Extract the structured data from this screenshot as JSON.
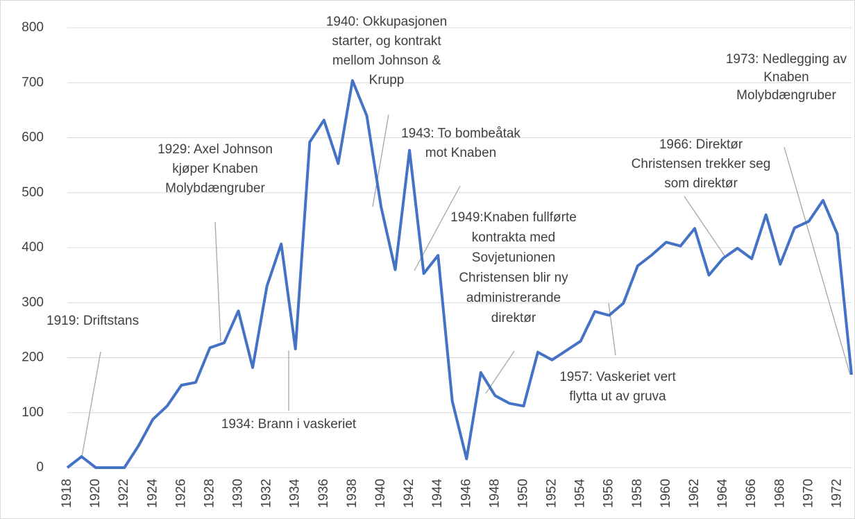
{
  "chart_data": {
    "type": "line",
    "categories": [
      "1918",
      null,
      "1920",
      null,
      "1922",
      null,
      "1924",
      null,
      "1926",
      null,
      "1928",
      null,
      "1930",
      null,
      "1932",
      null,
      "1934",
      null,
      "1936",
      null,
      "1938",
      null,
      "1940",
      null,
      "1942",
      null,
      "1944",
      null,
      "1946",
      null,
      "1948",
      null,
      "1950",
      null,
      "1952",
      null,
      "1954",
      null,
      "1956",
      null,
      "1958",
      null,
      "1960",
      null,
      "1962",
      null,
      "1964",
      null,
      "1966",
      null,
      "1968",
      null,
      "1970",
      null,
      "1972",
      null
    ],
    "series": [
      {
        "color": "#4472c4",
        "values": [
          0,
          20,
          0,
          0,
          0,
          40,
          88,
          112,
          150,
          155,
          218,
          227,
          285,
          182,
          330,
          407,
          216,
          592,
          632,
          553,
          704,
          640,
          475,
          360,
          577,
          353,
          386,
          121,
          16,
          173,
          131,
          117,
          112,
          210,
          196,
          213,
          230,
          284,
          277,
          299,
          367,
          387,
          410,
          403,
          435,
          350,
          381,
          399,
          380,
          460,
          370,
          436,
          448,
          486,
          425,
          169
        ]
      }
    ],
    "ylim": [
      0,
      800
    ],
    "yticks": [
      0,
      100,
      200,
      300,
      400,
      500,
      600,
      700,
      800
    ],
    "grid": true,
    "annotations": [
      [
        "1919: Driftstans"
      ],
      [
        "1929: Axel Johnson",
        "kjøper Knaben",
        "Molybdængruber"
      ],
      [
        "1934: Brann i vaskeriet"
      ],
      [
        "1940: Okkupasjonen",
        "starter, og kontrakt",
        "mellom Johnson &",
        "Krupp"
      ],
      [
        "1943: To bombeåtak",
        "mot Knaben"
      ],
      [
        "1949:Knaben fullførte",
        "kontrakta med",
        "Sovjetunionen",
        "Christensen blir ny",
        "administrerande",
        "direktør"
      ],
      [
        "1957: Vaskeriet vert",
        "flytta ut av gruva"
      ],
      [
        "1966: Direktør",
        "Christensen trekker seg",
        "som direktør"
      ],
      [
        "1973: Nedlegging av",
        "Knaben",
        "Molybdængruber"
      ]
    ]
  }
}
